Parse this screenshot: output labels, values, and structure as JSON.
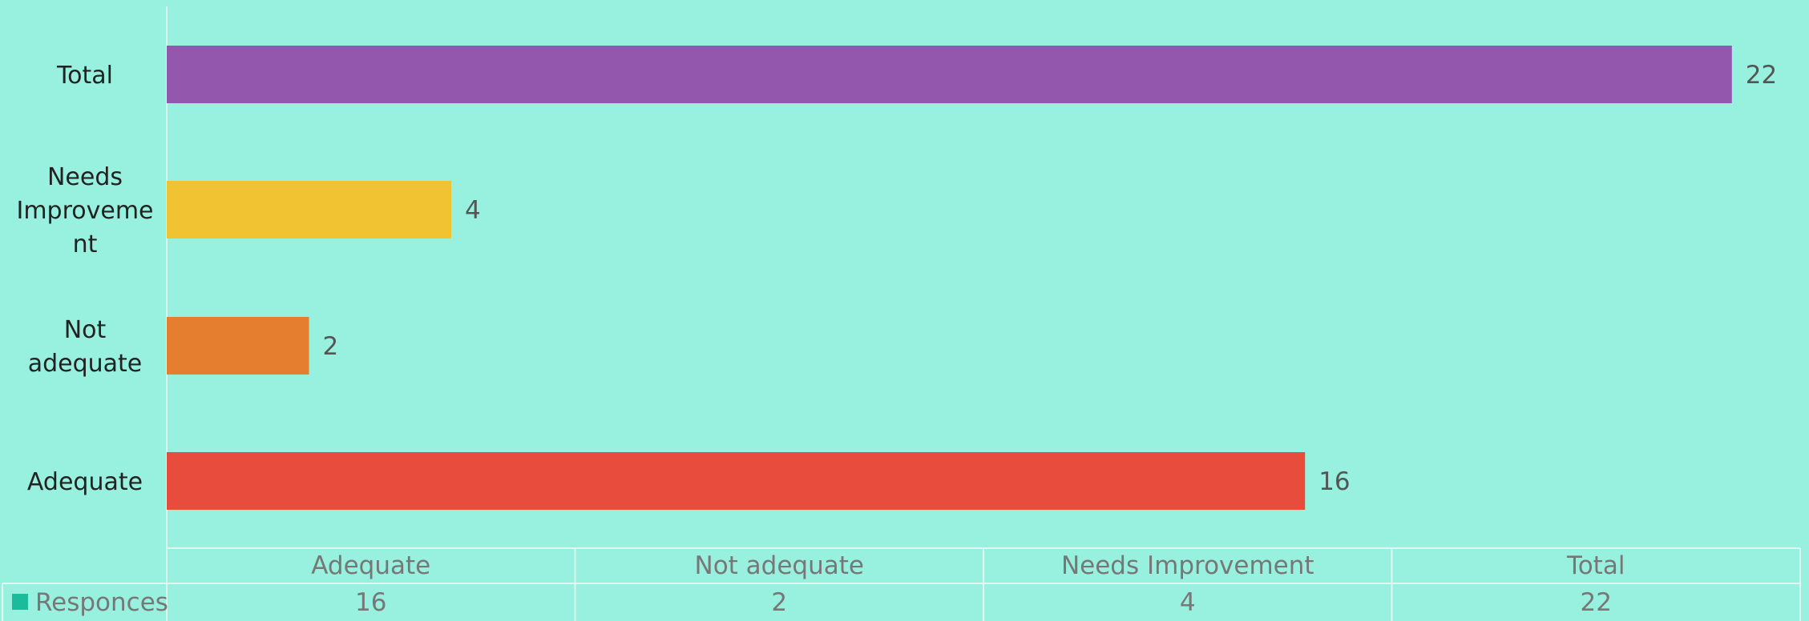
{
  "chart_data": {
    "type": "bar",
    "orientation": "horizontal",
    "categories": [
      "Adequate",
      "Not adequate",
      "Needs Improvement",
      "Total"
    ],
    "category_axis_labels": [
      [
        "Adequate"
      ],
      [
        "Not",
        "adequate"
      ],
      [
        "Needs",
        "Improveme",
        "nt"
      ],
      [
        "Total"
      ]
    ],
    "series": [
      {
        "name": "Responces",
        "values": [
          16,
          2,
          4,
          22
        ],
        "colors": [
          "#e74c3c",
          "#e67e30",
          "#f1c232",
          "#9358ae"
        ]
      }
    ],
    "xlim": [
      0,
      22.96
    ],
    "legend_color": "#1abc9c",
    "background_color": "#98f1df",
    "data_table": true
  }
}
